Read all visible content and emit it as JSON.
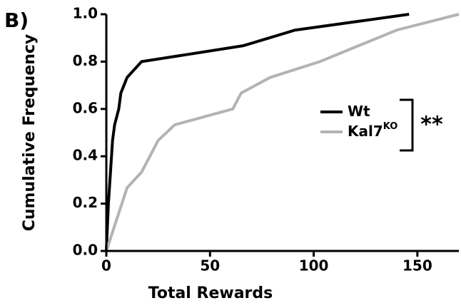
{
  "chart_data": {
    "type": "line",
    "panel_label": "B)",
    "x_label": "Total Rewards",
    "y_label": "Cumulative Frequency",
    "xlim": [
      0,
      170
    ],
    "xticks": [
      0,
      50,
      100,
      150
    ],
    "ylim": [
      0,
      1
    ],
    "yticks": [
      {
        "value": 0,
        "label": "0.0"
      },
      {
        "value": 0.2,
        "label": "0.2"
      },
      {
        "value": 0.4,
        "label": "0.4"
      },
      {
        "value": 0.6,
        "label": "0.6"
      },
      {
        "value": 0.8,
        "label": "0.8"
      },
      {
        "value": 1,
        "label": "1.0"
      }
    ],
    "grid": false,
    "series": [
      {
        "name": "Wt",
        "color": "#000000",
        "x": [
          0,
          1,
          2,
          3,
          4,
          6,
          7,
          10,
          17,
          66,
          91,
          146
        ],
        "values": [
          0,
          0.2,
          0.333,
          0.467,
          0.533,
          0.6,
          0.667,
          0.733,
          0.8,
          0.867,
          0.933,
          1.0
        ]
      },
      {
        "name": "Kal7",
        "name_sup": "KO",
        "color": "#b3b3b3",
        "x": [
          0,
          10,
          17,
          21,
          25,
          33,
          61,
          65,
          79,
          103,
          140,
          170
        ],
        "values": [
          0,
          0.267,
          0.333,
          0.4,
          0.467,
          0.533,
          0.6,
          0.667,
          0.733,
          0.8,
          0.933,
          1.0
        ]
      }
    ],
    "annotation": "**"
  }
}
